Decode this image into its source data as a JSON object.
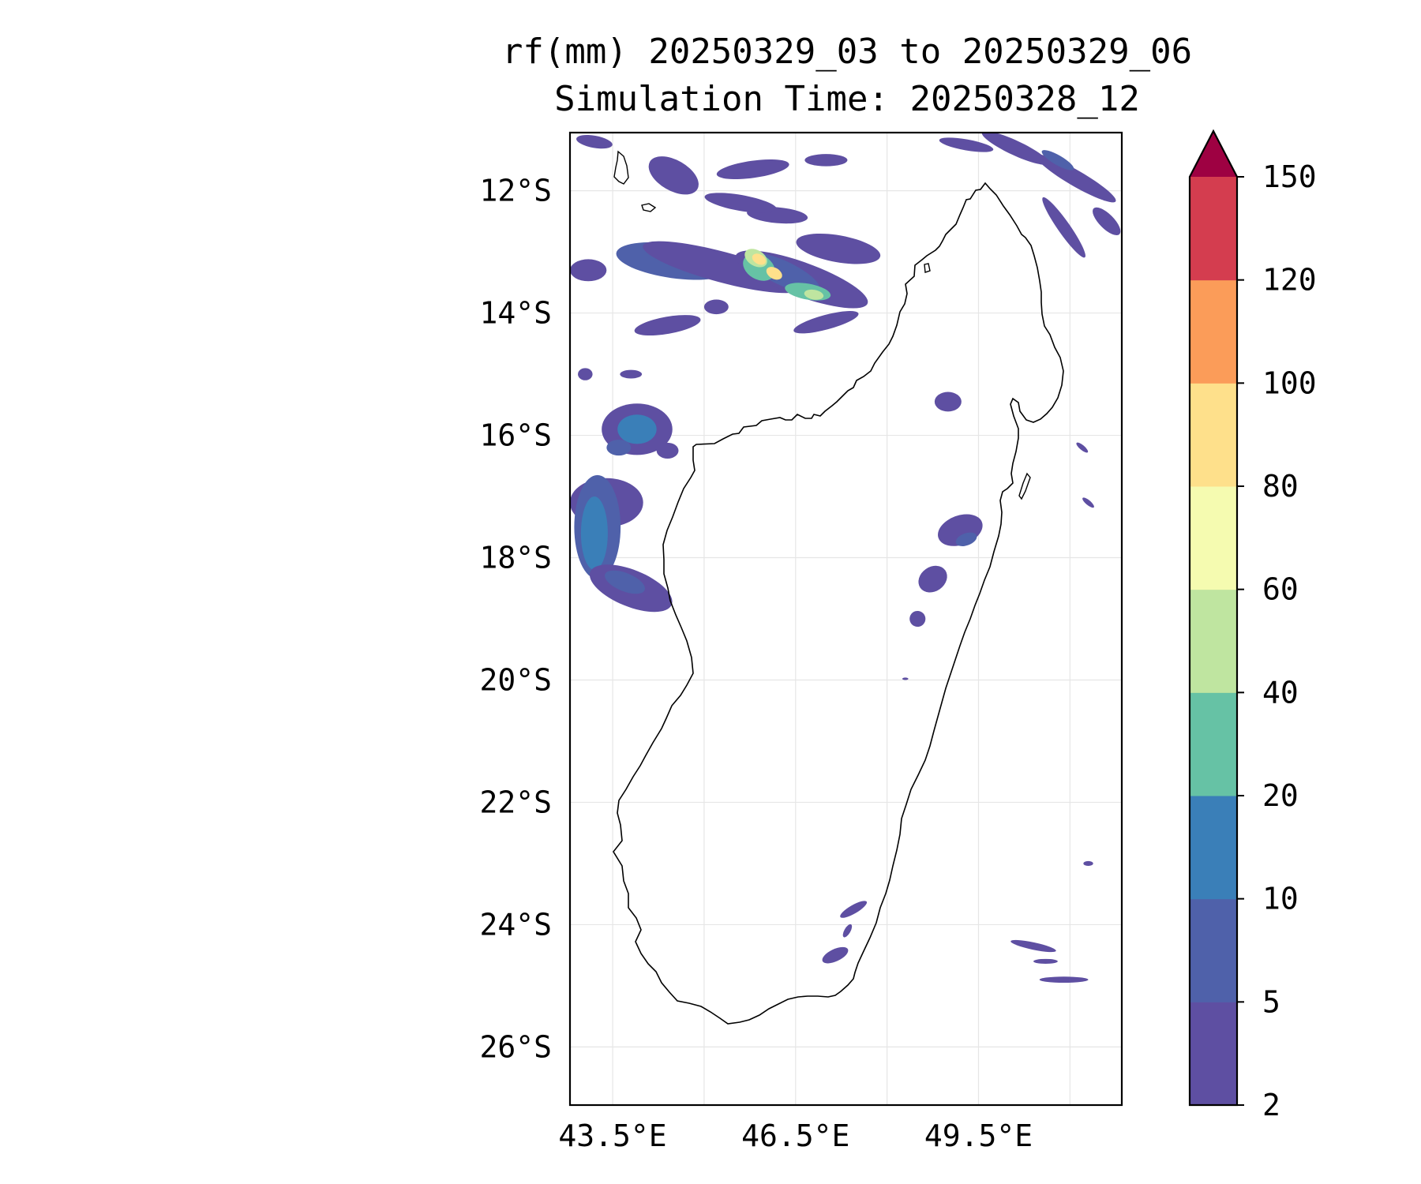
{
  "title": {
    "line1": "rf(mm) 20250329_03 to 20250329_06",
    "line2": "Simulation Time: 20250328_12"
  },
  "map": {
    "lon_range": [
      42.8,
      51.85
    ],
    "lat_range": [
      -26.95,
      -11.05
    ],
    "lat_ticks": [
      {
        "value": -12,
        "label": "12°S"
      },
      {
        "value": -14,
        "label": "14°S"
      },
      {
        "value": -16,
        "label": "16°S"
      },
      {
        "value": -18,
        "label": "18°S"
      },
      {
        "value": -20,
        "label": "20°S"
      },
      {
        "value": -22,
        "label": "22°S"
      },
      {
        "value": -24,
        "label": "24°S"
      },
      {
        "value": -26,
        "label": "26°S"
      }
    ],
    "lon_ticks": [
      {
        "value": 43.5,
        "label": "43.5°E"
      },
      {
        "value": 46.5,
        "label": "46.5°E"
      },
      {
        "value": 49.5,
        "label": "49.5°E"
      }
    ],
    "minor_lon_grid": [
      45.0,
      48.0,
      51.0
    ],
    "gridlines": true
  },
  "colorbar": {
    "levels": [
      2,
      5,
      10,
      20,
      40,
      60,
      80,
      100,
      120,
      150
    ],
    "labels": [
      "2",
      "5",
      "10",
      "20",
      "40",
      "60",
      "80",
      "100",
      "120",
      "150"
    ],
    "colors": [
      "#5e4fa2",
      "#4f61aa",
      "#3a7fb8",
      "#66c2a5",
      "#bfe5a0",
      "#f5fbb0",
      "#fee08b",
      "#fb9c59",
      "#d43d4f"
    ],
    "extend_color": "#9e0142",
    "extend": "max"
  },
  "rain_cells": [
    {
      "lon": 44.5,
      "lat": -13.15,
      "rx": 0.95,
      "ry": 0.28,
      "rot": 8,
      "level": 1
    },
    {
      "lon": 45.3,
      "lat": -13.25,
      "rx": 1.35,
      "ry": 0.25,
      "rot": 15,
      "level": 0
    },
    {
      "lon": 46.6,
      "lat": -13.45,
      "rx": 1.15,
      "ry": 0.28,
      "rot": 20,
      "level": 0
    },
    {
      "lon": 46.3,
      "lat": -13.35,
      "rx": 0.65,
      "ry": 0.2,
      "rot": 25,
      "level": 1
    },
    {
      "lon": 45.9,
      "lat": -13.25,
      "rx": 0.28,
      "ry": 0.2,
      "rot": 30,
      "level": 3
    },
    {
      "lon": 45.85,
      "lat": -13.1,
      "rx": 0.2,
      "ry": 0.13,
      "rot": 30,
      "level": 4
    },
    {
      "lon": 45.9,
      "lat": -13.12,
      "rx": 0.12,
      "ry": 0.08,
      "rot": 30,
      "level": 6
    },
    {
      "lon": 46.15,
      "lat": -13.35,
      "rx": 0.14,
      "ry": 0.09,
      "rot": 30,
      "level": 6
    },
    {
      "lon": 46.7,
      "lat": -13.65,
      "rx": 0.38,
      "ry": 0.13,
      "rot": 10,
      "level": 3
    },
    {
      "lon": 46.8,
      "lat": -13.7,
      "rx": 0.16,
      "ry": 0.08,
      "rot": 10,
      "level": 4
    },
    {
      "lon": 47.2,
      "lat": -12.95,
      "rx": 0.7,
      "ry": 0.22,
      "rot": 10,
      "level": 0
    },
    {
      "lon": 44.5,
      "lat": -11.75,
      "rx": 0.45,
      "ry": 0.25,
      "rot": 30,
      "level": 0
    },
    {
      "lon": 45.8,
      "lat": -11.65,
      "rx": 0.6,
      "ry": 0.14,
      "rot": -8,
      "level": 0
    },
    {
      "lon": 46.2,
      "lat": -12.4,
      "rx": 0.5,
      "ry": 0.13,
      "rot": 5,
      "level": 0
    },
    {
      "lon": 45.6,
      "lat": -12.2,
      "rx": 0.6,
      "ry": 0.13,
      "rot": 10,
      "level": 0
    },
    {
      "lon": 43.2,
      "lat": -11.2,
      "rx": 0.3,
      "ry": 0.1,
      "rot": 10,
      "level": 0
    },
    {
      "lon": 47.0,
      "lat": -11.5,
      "rx": 0.35,
      "ry": 0.1,
      "rot": 0,
      "level": 0
    },
    {
      "lon": 50.1,
      "lat": -11.3,
      "rx": 0.6,
      "ry": 0.12,
      "rot": 25,
      "level": 0
    },
    {
      "lon": 51.1,
      "lat": -11.8,
      "rx": 0.75,
      "ry": 0.13,
      "rot": 30,
      "level": 0
    },
    {
      "lon": 50.8,
      "lat": -11.5,
      "rx": 0.3,
      "ry": 0.08,
      "rot": 30,
      "level": 1
    },
    {
      "lon": 50.9,
      "lat": -12.6,
      "rx": 0.6,
      "ry": 0.1,
      "rot": 55,
      "level": 0
    },
    {
      "lon": 49.3,
      "lat": -11.25,
      "rx": 0.45,
      "ry": 0.09,
      "rot": 10,
      "level": 0
    },
    {
      "lon": 51.6,
      "lat": -12.5,
      "rx": 0.3,
      "ry": 0.12,
      "rot": 45,
      "level": 0
    },
    {
      "lon": 43.1,
      "lat": -13.3,
      "rx": 0.3,
      "ry": 0.18,
      "rot": 0,
      "level": 0
    },
    {
      "lon": 47.0,
      "lat": -14.15,
      "rx": 0.55,
      "ry": 0.12,
      "rot": -15,
      "level": 0
    },
    {
      "lon": 44.4,
      "lat": -14.2,
      "rx": 0.55,
      "ry": 0.14,
      "rot": -10,
      "level": 0
    },
    {
      "lon": 45.2,
      "lat": -13.9,
      "rx": 0.2,
      "ry": 0.12,
      "rot": 0,
      "level": 0
    },
    {
      "lon": 43.9,
      "lat": -15.9,
      "rx": 0.58,
      "ry": 0.42,
      "rot": 0,
      "level": 0
    },
    {
      "lon": 43.9,
      "lat": -15.9,
      "rx": 0.32,
      "ry": 0.24,
      "rot": 0,
      "level": 2
    },
    {
      "lon": 43.6,
      "lat": -16.2,
      "rx": 0.2,
      "ry": 0.13,
      "rot": 0,
      "level": 1
    },
    {
      "lon": 44.4,
      "lat": -16.25,
      "rx": 0.18,
      "ry": 0.13,
      "rot": 0,
      "level": 0
    },
    {
      "lon": 43.4,
      "lat": -17.1,
      "rx": 0.6,
      "ry": 0.4,
      "rot": 0,
      "level": 0
    },
    {
      "lon": 43.25,
      "lat": -17.5,
      "rx": 0.38,
      "ry": 0.85,
      "rot": 0,
      "level": 1
    },
    {
      "lon": 43.2,
      "lat": -17.6,
      "rx": 0.22,
      "ry": 0.6,
      "rot": 0,
      "level": 2
    },
    {
      "lon": 43.8,
      "lat": -18.5,
      "rx": 0.72,
      "ry": 0.3,
      "rot": 22,
      "level": 0
    },
    {
      "lon": 43.7,
      "lat": -18.4,
      "rx": 0.35,
      "ry": 0.15,
      "rot": 22,
      "level": 1
    },
    {
      "lon": 43.05,
      "lat": -15.0,
      "rx": 0.12,
      "ry": 0.1,
      "rot": 0,
      "level": 0
    },
    {
      "lon": 43.8,
      "lat": -15.0,
      "rx": 0.18,
      "ry": 0.07,
      "rot": 0,
      "level": 0
    },
    {
      "lon": 49.0,
      "lat": -15.45,
      "rx": 0.22,
      "ry": 0.16,
      "rot": 0,
      "level": 0
    },
    {
      "lon": 49.2,
      "lat": -17.55,
      "rx": 0.38,
      "ry": 0.24,
      "rot": -20,
      "level": 0
    },
    {
      "lon": 49.3,
      "lat": -17.7,
      "rx": 0.18,
      "ry": 0.1,
      "rot": -20,
      "level": 1
    },
    {
      "lon": 48.75,
      "lat": -18.35,
      "rx": 0.25,
      "ry": 0.2,
      "rot": -35,
      "level": 0
    },
    {
      "lon": 48.5,
      "lat": -19.0,
      "rx": 0.13,
      "ry": 0.13,
      "rot": -40,
      "level": 0
    },
    {
      "lon": 51.3,
      "lat": -17.1,
      "rx": 0.12,
      "ry": 0.04,
      "rot": 40,
      "level": 0
    },
    {
      "lon": 51.2,
      "lat": -16.2,
      "rx": 0.12,
      "ry": 0.04,
      "rot": 40,
      "level": 0
    },
    {
      "lon": 47.45,
      "lat": -23.75,
      "rx": 0.25,
      "ry": 0.07,
      "rot": -30,
      "level": 0
    },
    {
      "lon": 47.15,
      "lat": -24.5,
      "rx": 0.23,
      "ry": 0.1,
      "rot": -25,
      "level": 0
    },
    {
      "lon": 47.35,
      "lat": -24.1,
      "rx": 0.12,
      "ry": 0.05,
      "rot": -60,
      "level": 0
    },
    {
      "lon": 50.4,
      "lat": -24.35,
      "rx": 0.38,
      "ry": 0.06,
      "rot": 12,
      "level": 0
    },
    {
      "lon": 50.6,
      "lat": -24.6,
      "rx": 0.2,
      "ry": 0.04,
      "rot": 0,
      "level": 0
    },
    {
      "lon": 50.9,
      "lat": -24.9,
      "rx": 0.4,
      "ry": 0.05,
      "rot": 0,
      "level": 0
    },
    {
      "lon": 51.3,
      "lat": -23.0,
      "rx": 0.08,
      "ry": 0.04,
      "rot": 0,
      "level": 0
    },
    {
      "lon": 48.3,
      "lat": -19.98,
      "rx": 0.05,
      "ry": 0.02,
      "rot": 0,
      "level": 0
    }
  ]
}
